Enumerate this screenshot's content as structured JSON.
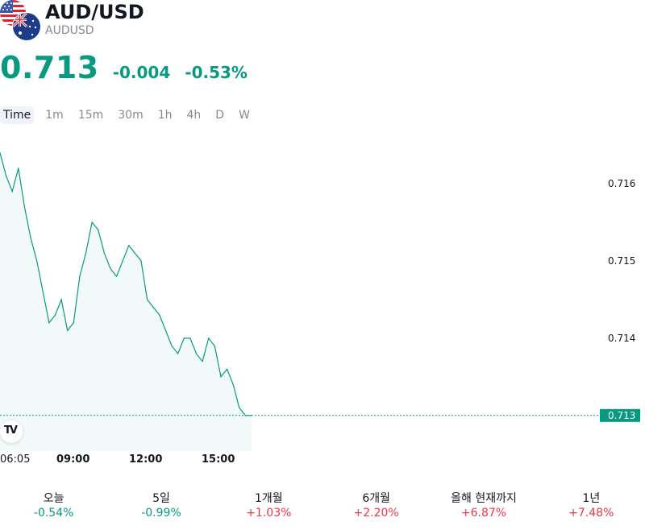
{
  "header": {
    "symbol": "AUD/USD",
    "ticker": "AUDUSD",
    "price": "0.713",
    "change": "-0.004",
    "change_pct": "-0.53%",
    "change_color": "#089981"
  },
  "icons": {
    "flag_primary": "australia-flag-icon",
    "flag_secondary": "usa-flag-icon",
    "logo": "tradingview-logo-icon"
  },
  "tabs": [
    "Time",
    "1m",
    "15m",
    "30m",
    "1h",
    "4h",
    "D",
    "W"
  ],
  "active_tab": "Time",
  "performance": [
    {
      "label": "오늘",
      "value": "-0.54%",
      "dir": "neg"
    },
    {
      "label": "5일",
      "value": "-0.99%",
      "dir": "neg"
    },
    {
      "label": "1개월",
      "value": "+1.03%",
      "dir": "pos"
    },
    {
      "label": "6개월",
      "value": "+2.20%",
      "dir": "pos"
    },
    {
      "label": "올해 현재까지",
      "value": "+6.87%",
      "dir": "pos"
    },
    {
      "label": "1년",
      "value": "+7.48%",
      "dir": "pos"
    }
  ],
  "chart_data": {
    "type": "area",
    "line_color": "#089981",
    "x_ticks": [
      "06:05",
      "09:00",
      "12:00",
      "15:00"
    ],
    "y_ticks": [
      "0.716",
      "0.715",
      "0.714",
      "0.713"
    ],
    "last_price_label": "0.713",
    "ylim": [
      0.7128,
      0.7165
    ],
    "series": [
      {
        "x": [
          "06:05",
          "06:20",
          "06:35",
          "06:50",
          "07:05",
          "07:20",
          "07:35",
          "07:50",
          "08:05",
          "08:20",
          "08:35",
          "08:50",
          "09:05",
          "09:20",
          "09:35",
          "09:50",
          "10:05",
          "10:20",
          "10:35",
          "10:50",
          "11:05",
          "11:20",
          "11:35",
          "11:50",
          "12:05",
          "12:20",
          "12:35",
          "12:50",
          "13:05",
          "13:20",
          "13:35",
          "13:50",
          "14:05",
          "14:20",
          "14:35",
          "14:50",
          "15:05",
          "15:20",
          "15:35",
          "15:50",
          "16:05",
          "16:20"
        ],
        "values": [
          0.7164,
          0.7161,
          0.7159,
          0.7162,
          0.7157,
          0.7153,
          0.715,
          0.7146,
          0.7142,
          0.7143,
          0.7145,
          0.7141,
          0.7142,
          0.7148,
          0.7151,
          0.7155,
          0.7154,
          0.7151,
          0.7149,
          0.7148,
          0.715,
          0.7152,
          0.7151,
          0.715,
          0.7145,
          0.7144,
          0.7143,
          0.7141,
          0.7139,
          0.7138,
          0.714,
          0.714,
          0.7138,
          0.7137,
          0.714,
          0.7139,
          0.7135,
          0.7136,
          0.7134,
          0.7131,
          0.713,
          0.713
        ]
      }
    ]
  }
}
